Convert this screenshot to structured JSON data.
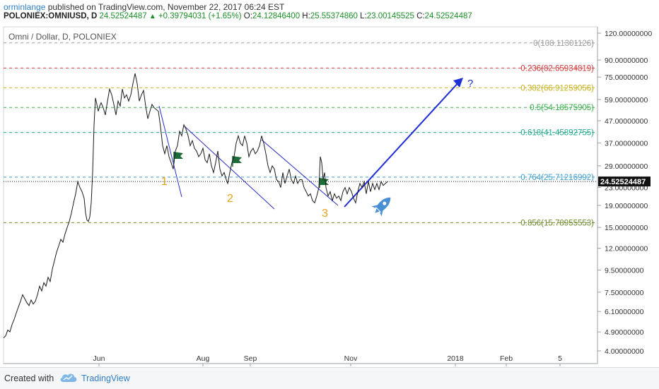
{
  "header": {
    "author": "orminlange",
    "published_text": " published on TradingView.com, November 22, 2017 06:24 EST",
    "symbol": "POLONIEX:OMNIUSD, D",
    "last_price": "24.52524487",
    "change_arrow": "▲",
    "change": "+0.39794031 (+1.65%)",
    "open_label": "O:",
    "open": "24.12846400",
    "high_label": "H:",
    "high": "25.55374860",
    "low_label": "L:",
    "low": "23.00145525",
    "close_label": "C:",
    "close": "24.52524487"
  },
  "footer": {
    "created_with": "Created with",
    "brand": "TradingView"
  },
  "chart_data": {
    "type": "line",
    "title": "Omni / Dollar, D, POLONIEX",
    "y_scale": "log",
    "ylim": [
      3.9,
      130
    ],
    "y_ticks": [
      {
        "v": 120,
        "label": "120.00000000"
      },
      {
        "v": 90,
        "label": "90.00000000"
      },
      {
        "v": 75,
        "label": "75.00000000"
      },
      {
        "v": 59,
        "label": "59.00000000"
      },
      {
        "v": 47,
        "label": "47.00000000"
      },
      {
        "v": 37,
        "label": "37.00000000"
      },
      {
        "v": 29,
        "label": "29.00000000"
      },
      {
        "v": 23,
        "label": "23.00000000"
      },
      {
        "v": 19,
        "label": "19.00000000"
      },
      {
        "v": 15,
        "label": "15.00000000"
      },
      {
        "v": 12,
        "label": "12.00000000"
      },
      {
        "v": 9.5,
        "label": "9.50000000"
      },
      {
        "v": 7.5,
        "label": "7.50000000"
      },
      {
        "v": 6.1,
        "label": "6.10000000"
      },
      {
        "v": 4.9,
        "label": "4.90000000"
      },
      {
        "v": 4,
        "label": "4.00000000"
      }
    ],
    "x_ticks": [
      "Jun",
      "Aug",
      "Sep",
      "Nov",
      "2018",
      "Feb",
      "5"
    ],
    "current_price": 24.52524487,
    "current_price_label": "24.52524487",
    "fib_levels": [
      {
        "ratio": "0",
        "value": 108.11301126,
        "label": "0(108.11301126)",
        "color": "#9a9a9a"
      },
      {
        "ratio": "0.236",
        "value": 82.65934819,
        "label": "0.236(82.65934819)",
        "color": "#d23a3a"
      },
      {
        "ratio": "0.382",
        "value": 66.91259056,
        "label": "0.382(66.91259056)",
        "color": "#c9b21f"
      },
      {
        "ratio": "0.5",
        "value": 54.18575905,
        "label": "0.5(54.18575905)",
        "color": "#38b04a"
      },
      {
        "ratio": "0.618",
        "value": 41.45892755,
        "label": "0.618(41.45892755)",
        "color": "#22a98a"
      },
      {
        "ratio": "0.764",
        "value": 25.71216992,
        "label": "0.764(25.71216992)",
        "color": "#3f9fd0"
      },
      {
        "ratio": "0.856",
        "value": 15.78955553,
        "label": "0.856(15.78955553)",
        "color": "#6e8a2d"
      }
    ],
    "price_points": [
      [
        5,
        4.6
      ],
      [
        8,
        4.7
      ],
      [
        11,
        5.0
      ],
      [
        14,
        4.9
      ],
      [
        17,
        5.3
      ],
      [
        20,
        5.6
      ],
      [
        23,
        6.0
      ],
      [
        26,
        6.4
      ],
      [
        29,
        6.8
      ],
      [
        32,
        7.3
      ],
      [
        35,
        7.0
      ],
      [
        38,
        6.7
      ],
      [
        41,
        6.5
      ],
      [
        44,
        6.9
      ],
      [
        47,
        6.6
      ],
      [
        50,
        6.8
      ],
      [
        53,
        7.3
      ],
      [
        56,
        8.0
      ],
      [
        59,
        7.6
      ],
      [
        62,
        8.3
      ],
      [
        65,
        8.0
      ],
      [
        68,
        8.8
      ],
      [
        71,
        8.4
      ],
      [
        74,
        9.6
      ],
      [
        77,
        10.5
      ],
      [
        80,
        11.5
      ],
      [
        83,
        12.3
      ],
      [
        86,
        13.2
      ],
      [
        89,
        12.8
      ],
      [
        92,
        14.0
      ],
      [
        95,
        15.0
      ],
      [
        98,
        16.0
      ],
      [
        101,
        17.5
      ],
      [
        104,
        19.5
      ],
      [
        107,
        21.5
      ],
      [
        110,
        24.5
      ],
      [
        113,
        23.0
      ],
      [
        116,
        22.0
      ],
      [
        119,
        20.5
      ],
      [
        121,
        17.5
      ],
      [
        123,
        16.2
      ],
      [
        125,
        16.0
      ],
      [
        127,
        16.8
      ],
      [
        129,
        19.5
      ],
      [
        131,
        27.0
      ],
      [
        133,
        45.0
      ],
      [
        135,
        60.0
      ],
      [
        137,
        56.0
      ],
      [
        139,
        52.0
      ],
      [
        141,
        55.0
      ],
      [
        143,
        57.0
      ],
      [
        146,
        54.0
      ],
      [
        149,
        50.0
      ],
      [
        152,
        58.0
      ],
      [
        155,
        66.0
      ],
      [
        158,
        62.0
      ],
      [
        161,
        56.0
      ],
      [
        164,
        50.0
      ],
      [
        167,
        58.0
      ],
      [
        170,
        55.0
      ],
      [
        173,
        66.0
      ],
      [
        176,
        60.0
      ],
      [
        179,
        62.0
      ],
      [
        182,
        58.0
      ],
      [
        185,
        62.0
      ],
      [
        188,
        70.0
      ],
      [
        191,
        78.0
      ],
      [
        194,
        70.0
      ],
      [
        197,
        58.0
      ],
      [
        200,
        62.0
      ],
      [
        203,
        65.0
      ],
      [
        206,
        55.0
      ],
      [
        209,
        48.0
      ],
      [
        212,
        52.0
      ],
      [
        215,
        56.0
      ],
      [
        218,
        54.0
      ],
      [
        221,
        53.0
      ],
      [
        224,
        52.0
      ],
      [
        227,
        44.0
      ],
      [
        230,
        36.0
      ],
      [
        233,
        33.0
      ],
      [
        236,
        36.0
      ],
      [
        239,
        32.0
      ],
      [
        242,
        30.0
      ],
      [
        245,
        28.0
      ],
      [
        248,
        34.0
      ],
      [
        251,
        36.0
      ],
      [
        254,
        42.0
      ],
      [
        257,
        40.0
      ],
      [
        260,
        45.0
      ],
      [
        263,
        43.0
      ],
      [
        266,
        40.0
      ],
      [
        269,
        36.0
      ],
      [
        272,
        38.0
      ],
      [
        275,
        35.0
      ],
      [
        278,
        34.0
      ],
      [
        281,
        32.0
      ],
      [
        284,
        33.0
      ],
      [
        287,
        35.0
      ],
      [
        290,
        31.0
      ],
      [
        293,
        30.0
      ],
      [
        296,
        33.0
      ],
      [
        299,
        29.0
      ],
      [
        302,
        27.0
      ],
      [
        305,
        30.0
      ],
      [
        308,
        34.0
      ],
      [
        311,
        28.0
      ],
      [
        314,
        26.0
      ],
      [
        317,
        27.0
      ],
      [
        320,
        25.0
      ],
      [
        322,
        24.0
      ],
      [
        325,
        27.0
      ],
      [
        328,
        30.0
      ],
      [
        331,
        32.0
      ],
      [
        334,
        37.0
      ],
      [
        337,
        40.0
      ],
      [
        340,
        37.0
      ],
      [
        343,
        36.0
      ],
      [
        346,
        40.0
      ],
      [
        349,
        37.0
      ],
      [
        352,
        32.0
      ],
      [
        355,
        34.0
      ],
      [
        358,
        35.0
      ],
      [
        361,
        33.0
      ],
      [
        364,
        34.0
      ],
      [
        367,
        36.0
      ],
      [
        370,
        40.0
      ],
      [
        373,
        37.0
      ],
      [
        376,
        33.0
      ],
      [
        379,
        29.0
      ],
      [
        382,
        27.0
      ],
      [
        385,
        29.0
      ],
      [
        388,
        28.0
      ],
      [
        391,
        25.0
      ],
      [
        394,
        24.5
      ],
      [
        397,
        23.0
      ],
      [
        400,
        27.0
      ],
      [
        403,
        24.0
      ],
      [
        406,
        26.0
      ],
      [
        409,
        28.0
      ],
      [
        412,
        25.0
      ],
      [
        415,
        24.0
      ],
      [
        418,
        26.0
      ],
      [
        421,
        24.0
      ],
      [
        424,
        25.0
      ],
      [
        427,
        25.0
      ],
      [
        430,
        23.0
      ],
      [
        433,
        22.0
      ],
      [
        436,
        21.0
      ],
      [
        439,
        21.5
      ],
      [
        442,
        20.0
      ],
      [
        445,
        19.5
      ],
      [
        448,
        21.0
      ],
      [
        451,
        23.0
      ],
      [
        453,
        32.0
      ],
      [
        455,
        30.0
      ],
      [
        457,
        25.0
      ],
      [
        459,
        27.0
      ],
      [
        461,
        23.0
      ],
      [
        464,
        21.0
      ],
      [
        467,
        22.0
      ],
      [
        470,
        20.0
      ],
      [
        473,
        21.5
      ],
      [
        476,
        20.5
      ],
      [
        479,
        21.0
      ],
      [
        482,
        20.0
      ],
      [
        485,
        22.0
      ],
      [
        488,
        23.0
      ],
      [
        491,
        21.5
      ],
      [
        494,
        23.0
      ],
      [
        497,
        22.0
      ],
      [
        500,
        20.5
      ],
      [
        503,
        19.5
      ],
      [
        506,
        22.0
      ],
      [
        509,
        24.0
      ],
      [
        512,
        23.0
      ],
      [
        515,
        24.5
      ],
      [
        518,
        21.5
      ],
      [
        521,
        24.5
      ],
      [
        524,
        22.0
      ],
      [
        527,
        24.0
      ],
      [
        530,
        22.5
      ],
      [
        533,
        24.0
      ],
      [
        536,
        22.5
      ],
      [
        539,
        24.5
      ],
      [
        542,
        23.5
      ],
      [
        545,
        24.0
      ],
      [
        548,
        24.5
      ]
    ],
    "wave_labels": [
      "1",
      "2",
      "3"
    ],
    "target_label": "?"
  }
}
